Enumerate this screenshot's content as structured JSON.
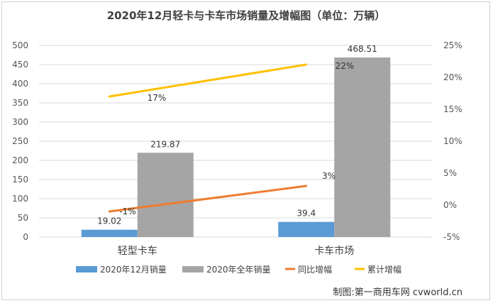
{
  "chart_data": {
    "type": "bar",
    "title": "2020年12月轻卡与卡车市场销量及增幅图（单位：万辆）",
    "categories": [
      "轻型卡车",
      "卡车市场"
    ],
    "series": [
      {
        "name": "2020年12月销量",
        "kind": "bar",
        "axis": "left",
        "color": "#5b9bd5",
        "values": [
          19.02,
          39.4
        ],
        "labels": [
          "19.02",
          "39.4"
        ]
      },
      {
        "name": "2020年全年销量",
        "kind": "bar",
        "axis": "left",
        "color": "#a5a5a5",
        "values": [
          219.87,
          468.51
        ],
        "labels": [
          "219.87",
          "468.51"
        ]
      },
      {
        "name": "同比增幅",
        "kind": "line",
        "axis": "right",
        "color": "#ed7d31",
        "values": [
          -1,
          3
        ],
        "labels": [
          "-1%",
          "3%"
        ]
      },
      {
        "name": "累计增幅",
        "kind": "line",
        "axis": "right",
        "color": "#ffc000",
        "values": [
          17,
          22
        ],
        "labels": [
          "17%",
          "22%"
        ]
      }
    ],
    "y_left": {
      "min": 0,
      "max": 500,
      "step": 50,
      "ticks": [
        "0",
        "50",
        "100",
        "150",
        "200",
        "250",
        "300",
        "350",
        "400",
        "450",
        "500"
      ]
    },
    "y_right": {
      "min": -5,
      "max": 25,
      "step": 5,
      "ticks": [
        "-5%",
        "0%",
        "5%",
        "10%",
        "15%",
        "20%",
        "25%"
      ]
    },
    "grid": true,
    "legend_position": "bottom"
  },
  "source": "制图:第一商用车网 cvworld.cn"
}
